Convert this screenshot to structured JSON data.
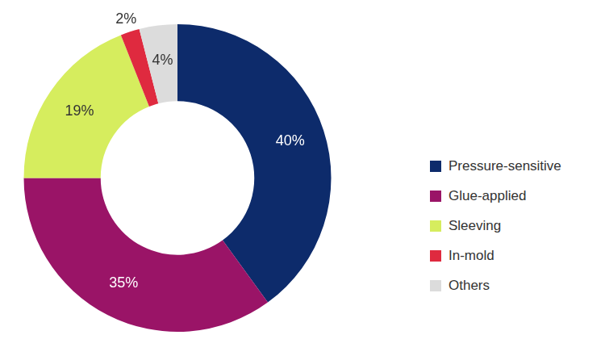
{
  "chart_data": {
    "type": "doughnut",
    "categories": [
      "Pressure-sensitive",
      "Glue-applied",
      "Sleeving",
      "In-mold",
      "Others"
    ],
    "values": [
      40,
      35,
      19,
      2,
      4
    ],
    "value_labels": [
      "40%",
      "35%",
      "19%",
      "2%",
      "4%"
    ],
    "colors": [
      "#0d2b6b",
      "#9a1467",
      "#d6ed5e",
      "#df2a3f",
      "#dcdcdc"
    ],
    "data_labels": true,
    "legend": "right"
  }
}
